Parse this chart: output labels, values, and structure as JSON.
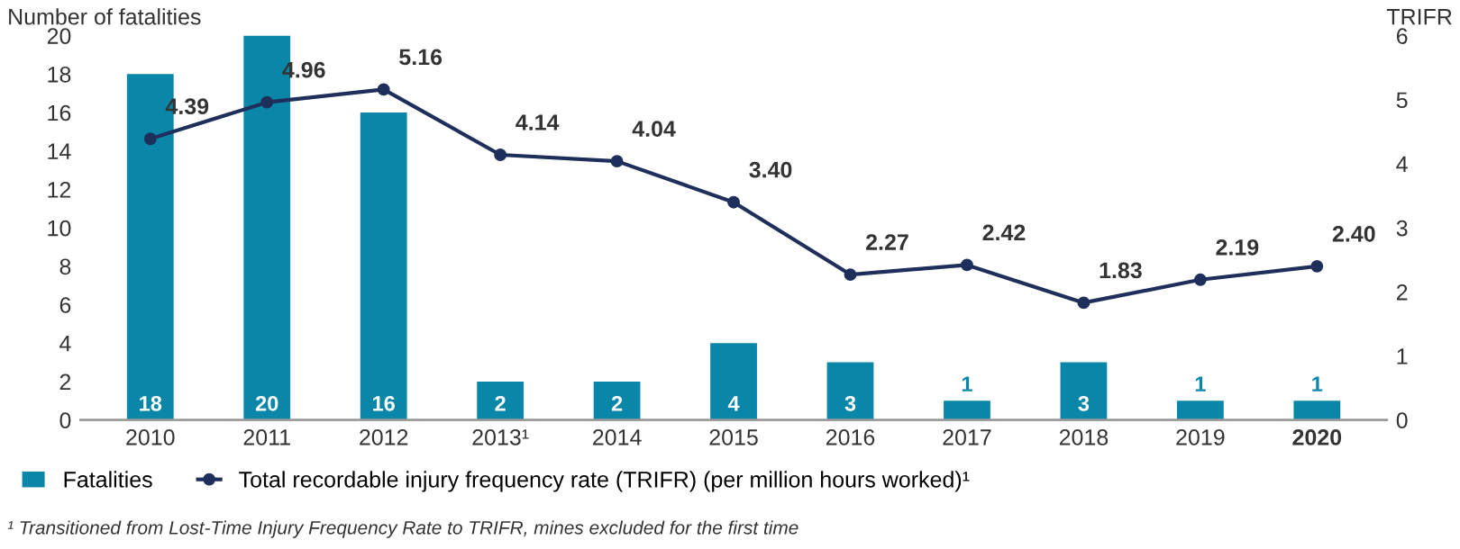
{
  "chart_data": {
    "type": "bar",
    "ylabel": "Number of fatalities",
    "y2label": "TRIFR",
    "categories": [
      "2010",
      "2011",
      "2012",
      "2013¹",
      "2014",
      "2015",
      "2016",
      "2017",
      "2018",
      "2019",
      "2020"
    ],
    "series": [
      {
        "name": "Fatalities",
        "color": "#0a86a8",
        "values": [
          18,
          20,
          16,
          2,
          2,
          4,
          3,
          1,
          3,
          1,
          1
        ]
      },
      {
        "name": "Total recordable injury frequency rate (TRIFR) (per million hours worked)¹",
        "type": "line",
        "axis": "y2",
        "color": "#1f2f5b",
        "marker": "circle",
        "values": [
          4.39,
          4.96,
          5.16,
          4.14,
          4.04,
          3.4,
          2.27,
          2.42,
          1.83,
          2.19,
          2.4
        ],
        "value_labels": [
          "4.39",
          "4.96",
          "5.16",
          "4.14",
          "4.04",
          "3.40",
          "2.27",
          "2.42",
          "1.83",
          "2.19",
          "2.40"
        ]
      }
    ],
    "ylim": [
      0,
      20
    ],
    "yticks": [
      0,
      2,
      4,
      6,
      8,
      10,
      12,
      14,
      16,
      18,
      20
    ],
    "y2lim": [
      0,
      6
    ],
    "y2ticks": [
      0,
      1,
      2,
      3,
      4,
      5,
      6
    ],
    "data_labels": true,
    "legend": "bottom",
    "grid": false,
    "annotations": [
      "¹ Transitioned from Lost-Time Injury Frequency Rate to TRIFR, mines excluded for the first time"
    ]
  }
}
